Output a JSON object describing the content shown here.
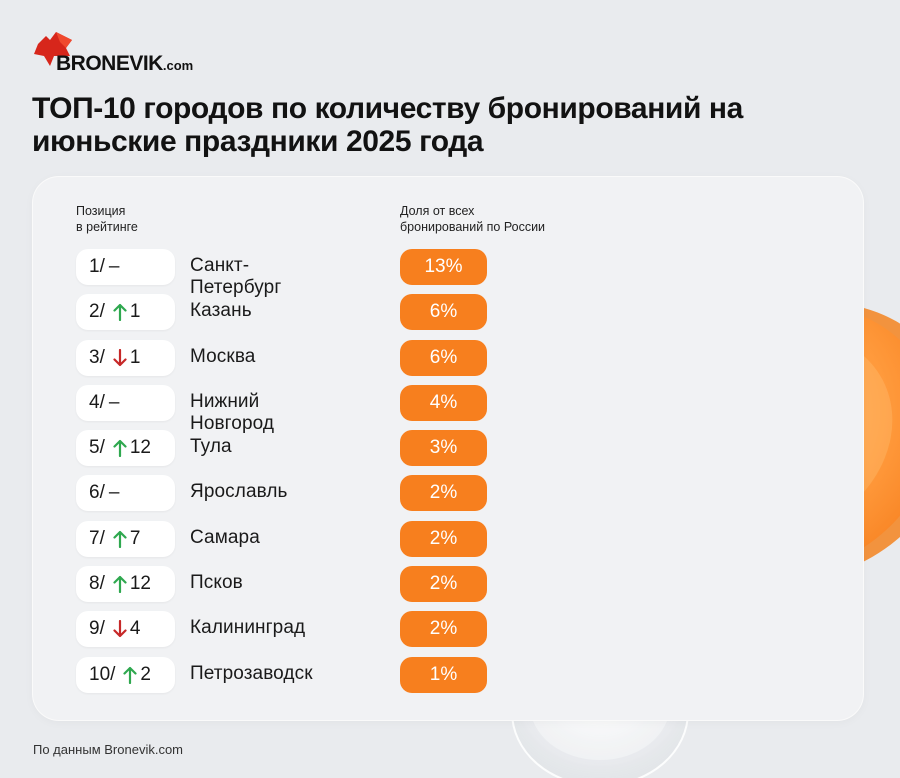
{
  "logo": {
    "text": "BRONEVIK",
    "suffix": ".com"
  },
  "title": "ТОП-10 городов по количеству бронирований на июньские праздники 2025 года",
  "headers": {
    "position": "Позиция\nв рейтинге",
    "share": "Доля от всех\nбронирований по России"
  },
  "colors": {
    "accent": "#f77f1e",
    "up": "#2fa84f",
    "down": "#c62828",
    "logo_red": "#d7261b"
  },
  "rows": [
    {
      "pos": "1/",
      "change": "none",
      "change_value": "–",
      "city": "Санкт-Петербург",
      "share": "13%"
    },
    {
      "pos": "2/",
      "change": "up",
      "change_value": "1",
      "city": "Казань",
      "share": "6%"
    },
    {
      "pos": "3/",
      "change": "down",
      "change_value": "1",
      "city": "Москва",
      "share": "6%"
    },
    {
      "pos": "4/",
      "change": "none",
      "change_value": "–",
      "city": "Нижний Новгород",
      "share": "4%"
    },
    {
      "pos": "5/",
      "change": "up",
      "change_value": "12",
      "city": "Тула",
      "share": "3%"
    },
    {
      "pos": "6/",
      "change": "none",
      "change_value": "–",
      "city": "Ярославль",
      "share": "2%"
    },
    {
      "pos": "7/",
      "change": "up",
      "change_value": "7",
      "city": "Самара",
      "share": "2%"
    },
    {
      "pos": "8/",
      "change": "up",
      "change_value": "12",
      "city": "Псков",
      "share": "2%"
    },
    {
      "pos": "9/",
      "change": "down",
      "change_value": "4",
      "city": "Калининград",
      "share": "2%"
    },
    {
      "pos": "10/",
      "change": "up",
      "change_value": "2",
      "city": "Петрозаводск",
      "share": "1%"
    }
  ],
  "source": "По данным Bronevik.com"
}
